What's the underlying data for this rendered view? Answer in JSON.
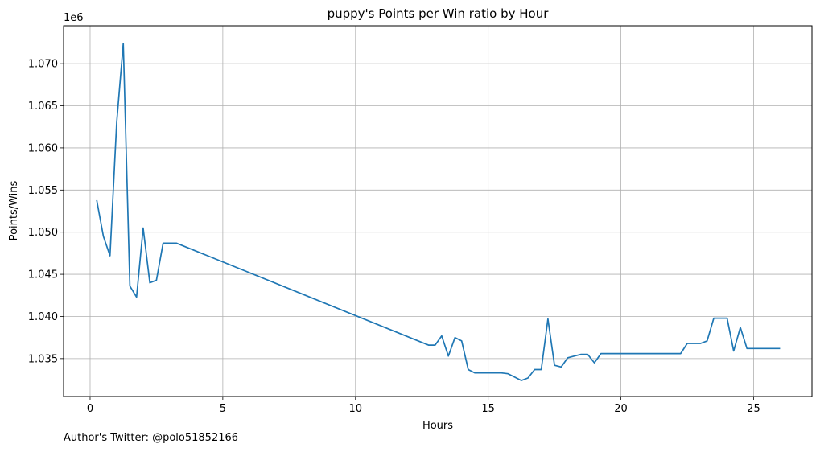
{
  "chart_data": {
    "type": "line",
    "title": "puppy's Points per Win ratio by Hour",
    "xlabel": "Hours",
    "ylabel": "Points/Wins",
    "y_offset_label": "1e6",
    "xlim": [
      -1,
      27.2
    ],
    "ylim": [
      1.0305,
      1.0745
    ],
    "x_ticks": [
      0,
      5,
      10,
      15,
      20,
      25
    ],
    "x_tick_labels": [
      "0",
      "5",
      "10",
      "15",
      "20",
      "25"
    ],
    "y_ticks": [
      1.035,
      1.04,
      1.045,
      1.05,
      1.055,
      1.06,
      1.065,
      1.07
    ],
    "y_tick_labels": [
      "1.035",
      "1.040",
      "1.045",
      "1.050",
      "1.055",
      "1.060",
      "1.065",
      "1.070"
    ],
    "grid": true,
    "color": "#1f77b4",
    "series": [
      {
        "x": [
          0.25,
          0.5,
          0.75,
          1.0,
          1.25,
          1.5,
          1.75,
          2.0,
          2.25,
          2.5,
          2.75,
          3.0,
          3.25,
          12.75,
          13.0,
          13.25,
          13.5,
          13.75,
          14.0,
          14.25,
          14.5,
          14.75,
          15.0,
          15.25,
          15.5,
          15.75,
          16.0,
          16.25,
          16.5,
          16.75,
          17.0,
          17.25,
          17.5,
          17.75,
          18.0,
          18.25,
          18.5,
          18.75,
          19.0,
          19.25,
          19.5,
          19.75,
          20.0,
          20.25,
          20.5,
          20.75,
          21.0,
          21.25,
          21.5,
          21.75,
          22.0,
          22.25,
          22.5,
          22.75,
          23.0,
          23.25,
          23.5,
          23.75,
          24.0,
          24.25,
          24.5,
          24.75,
          25.0,
          25.25,
          25.5,
          25.75,
          26.0
        ],
        "y": [
          1.0538,
          1.0495,
          1.0472,
          1.063,
          1.0724,
          1.0436,
          1.0423,
          1.0505,
          1.044,
          1.0443,
          1.0487,
          1.0487,
          1.0487,
          1.0366,
          1.0366,
          1.0377,
          1.0353,
          1.0375,
          1.0371,
          1.0337,
          1.0333,
          1.0333,
          1.0333,
          1.0333,
          1.0333,
          1.0332,
          1.0328,
          1.0324,
          1.0327,
          1.0337,
          1.0337,
          1.0397,
          1.0342,
          1.034,
          1.0351,
          1.0353,
          1.0355,
          1.0355,
          1.0345,
          1.0356,
          1.0356,
          1.0356,
          1.0356,
          1.0356,
          1.0356,
          1.0356,
          1.0356,
          1.0356,
          1.0356,
          1.0356,
          1.0356,
          1.0356,
          1.0368,
          1.0368,
          1.0368,
          1.0371,
          1.0398,
          1.0398,
          1.0398,
          1.0359,
          1.0387,
          1.0362,
          1.0362,
          1.0362,
          1.0362,
          1.0362,
          1.0362
        ]
      }
    ]
  },
  "footer": {
    "author_note": "Author's Twitter: @polo51852166"
  }
}
